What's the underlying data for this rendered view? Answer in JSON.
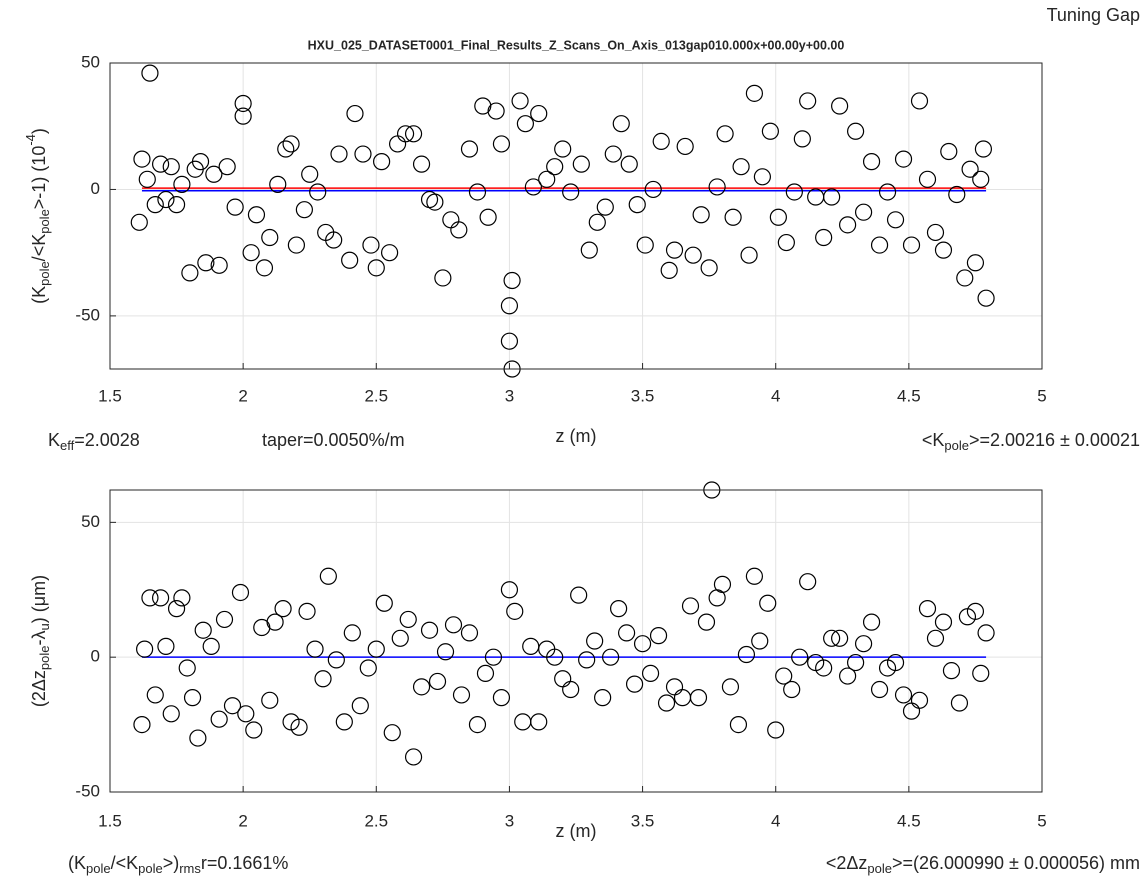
{
  "chart_data": [
    {
      "type": "scatter",
      "suptitle": "Tuning Gap",
      "title": "HXU_025_DATASET0001_Final_Results_Z_Scans_On_Axis_013gap010.000x+00.00y+00.00",
      "xlabel": "z (m)",
      "ylabel": [
        {
          "text": "(K"
        },
        {
          "text": "pole",
          "script": "sub"
        },
        {
          "text": "/<K"
        },
        {
          "text": "pole",
          "script": "sub"
        },
        {
          "text": ">-1) (10"
        },
        {
          "text": "-4",
          "script": "sup"
        },
        {
          "text": ")"
        }
      ],
      "xlim": [
        1.5,
        5
      ],
      "ylim": [
        -71,
        50
      ],
      "xticks": [
        1.5,
        2,
        2.5,
        3,
        3.5,
        4,
        4.5,
        5
      ],
      "yticks": [
        -50,
        0,
        50
      ],
      "grid": true,
      "series": [
        {
          "color": "#000000",
          "marker": "circle",
          "x": [
            1.61,
            1.62,
            1.64,
            1.65,
            1.67,
            1.69,
            1.71,
            1.73,
            1.75,
            1.77,
            1.8,
            1.82,
            1.84,
            1.86,
            1.89,
            1.91,
            1.94,
            1.97,
            2.0,
            2.0,
            2.03,
            2.05,
            2.08,
            2.1,
            2.13,
            2.16,
            2.18,
            2.2,
            2.23,
            2.25,
            2.28,
            2.31,
            2.34,
            2.36,
            2.4,
            2.42,
            2.45,
            2.48,
            2.5,
            2.52,
            2.55,
            2.58,
            2.61,
            2.64,
            2.67,
            2.7,
            2.72,
            2.75,
            2.78,
            2.81,
            2.85,
            2.88,
            2.9,
            2.92,
            2.95,
            2.97,
            3.0,
            3.0,
            3.01,
            3.01,
            3.04,
            3.06,
            3.09,
            3.11,
            3.14,
            3.17,
            3.2,
            3.23,
            3.27,
            3.3,
            3.33,
            3.36,
            3.39,
            3.42,
            3.45,
            3.48,
            3.51,
            3.54,
            3.57,
            3.6,
            3.62,
            3.66,
            3.69,
            3.72,
            3.75,
            3.78,
            3.81,
            3.84,
            3.87,
            3.9,
            3.92,
            3.95,
            3.98,
            4.01,
            4.04,
            4.07,
            4.1,
            4.12,
            4.15,
            4.18,
            4.21,
            4.24,
            4.27,
            4.3,
            4.33,
            4.36,
            4.39,
            4.42,
            4.45,
            4.48,
            4.51,
            4.54,
            4.57,
            4.6,
            4.63,
            4.65,
            4.68,
            4.71,
            4.73,
            4.75,
            4.77,
            4.78,
            4.79
          ],
          "values": [
            -13,
            12,
            4,
            46,
            -6,
            10,
            -4,
            9,
            -6,
            2,
            -33,
            8,
            11,
            -29,
            6,
            -30,
            9,
            -7,
            34,
            29,
            -25,
            -10,
            -31,
            -19,
            2,
            16,
            18,
            -22,
            -8,
            6,
            -1,
            -17,
            -20,
            14,
            -28,
            30,
            14,
            -22,
            -31,
            11,
            -25,
            18,
            22,
            22,
            10,
            -4,
            -5,
            -35,
            -12,
            -16,
            16,
            -1,
            33,
            -11,
            31,
            18,
            -46,
            -60,
            -71,
            -36,
            35,
            26,
            1,
            30,
            4,
            9,
            16,
            -1,
            10,
            -24,
            -13,
            -7,
            14,
            26,
            10,
            -6,
            -22,
            0,
            19,
            -32,
            -24,
            17,
            -26,
            -10,
            -31,
            1,
            22,
            -11,
            9,
            -26,
            38,
            5,
            23,
            -11,
            -21,
            -1,
            20,
            35,
            -3,
            -19,
            -3,
            33,
            -14,
            23,
            -9,
            11,
            -22,
            -1,
            -12,
            12,
            -22,
            35,
            4,
            -17,
            -24,
            15,
            -2,
            -35,
            8,
            -29,
            4,
            16,
            -43
          ]
        }
      ],
      "lines": [
        {
          "color": "#ff0000",
          "x": [
            1.62,
            4.79
          ],
          "values": [
            0.5,
            0.5
          ]
        },
        {
          "color": "#0000ff",
          "x": [
            1.62,
            4.79
          ],
          "values": [
            -0.5,
            -0.5
          ]
        }
      ],
      "annotations": [
        [
          {
            "text": "K"
          },
          {
            "text": "eff",
            "script": "sub"
          },
          {
            "text": "=2.0028"
          }
        ],
        [
          {
            "text": "taper=0.0050%/m"
          }
        ],
        [
          {
            "text": "<K"
          },
          {
            "text": "pole",
            "script": "sub"
          },
          {
            "text": ">=2.00216 ± 0.00021"
          }
        ]
      ]
    },
    {
      "type": "scatter",
      "xlabel": "z (m)",
      "ylabel": [
        {
          "text": "(2Δz"
        },
        {
          "text": "pole",
          "script": "sub"
        },
        {
          "text": "-λ"
        },
        {
          "text": "u",
          "script": "sub"
        },
        {
          "text": ") (μm)"
        }
      ],
      "xlim": [
        1.5,
        5
      ],
      "ylim": [
        -50,
        62
      ],
      "xticks": [
        1.5,
        2,
        2.5,
        3,
        3.5,
        4,
        4.5,
        5
      ],
      "yticks": [
        -50,
        0,
        50
      ],
      "grid": true,
      "series": [
        {
          "color": "#000000",
          "marker": "circle",
          "x": [
            1.62,
            1.63,
            1.65,
            1.67,
            1.69,
            1.71,
            1.73,
            1.75,
            1.77,
            1.79,
            1.81,
            1.83,
            1.85,
            1.88,
            1.91,
            1.93,
            1.96,
            1.99,
            2.01,
            2.04,
            2.07,
            2.1,
            2.12,
            2.15,
            2.18,
            2.21,
            2.24,
            2.27,
            2.3,
            2.32,
            2.35,
            2.38,
            2.41,
            2.44,
            2.47,
            2.5,
            2.53,
            2.56,
            2.59,
            2.62,
            2.64,
            2.67,
            2.7,
            2.73,
            2.76,
            2.79,
            2.82,
            2.85,
            2.88,
            2.91,
            2.94,
            2.97,
            3.0,
            3.02,
            3.05,
            3.08,
            3.11,
            3.14,
            3.17,
            3.2,
            3.23,
            3.26,
            3.29,
            3.32,
            3.35,
            3.38,
            3.41,
            3.44,
            3.47,
            3.5,
            3.53,
            3.56,
            3.59,
            3.62,
            3.65,
            3.68,
            3.71,
            3.74,
            3.76,
            3.78,
            3.8,
            3.83,
            3.86,
            3.89,
            3.92,
            3.94,
            3.97,
            4.0,
            4.03,
            4.06,
            4.09,
            4.12,
            4.15,
            4.18,
            4.21,
            4.24,
            4.27,
            4.3,
            4.33,
            4.36,
            4.39,
            4.42,
            4.45,
            4.48,
            4.51,
            4.54,
            4.57,
            4.6,
            4.63,
            4.66,
            4.69,
            4.72,
            4.75,
            4.77,
            4.79
          ],
          "values": [
            -25,
            3,
            22,
            -14,
            22,
            4,
            -21,
            18,
            22,
            -4,
            -15,
            -30,
            10,
            4,
            -23,
            14,
            -18,
            24,
            -21,
            -27,
            11,
            -16,
            13,
            18,
            -24,
            -26,
            17,
            3,
            -8,
            30,
            -1,
            -24,
            9,
            -18,
            -4,
            3,
            20,
            -28,
            7,
            14,
            -37,
            -11,
            10,
            -9,
            2,
            12,
            -14,
            9,
            -25,
            -6,
            0,
            -15,
            25,
            17,
            -24,
            4,
            -24,
            3,
            0,
            -8,
            -12,
            23,
            -1,
            6,
            -15,
            0,
            18,
            9,
            -10,
            5,
            -6,
            8,
            -17,
            -11,
            -15,
            19,
            -15,
            13,
            62,
            22,
            27,
            -11,
            -25,
            1,
            30,
            6,
            20,
            -27,
            -7,
            -12,
            0,
            28,
            -2,
            -4,
            7,
            7,
            -7,
            -2,
            5,
            13,
            -12,
            -4,
            -2,
            -14,
            -20,
            -16,
            18,
            7,
            13,
            -5,
            -17,
            15,
            17,
            -6,
            9
          ]
        }
      ],
      "lines": [
        {
          "color": "#0000ff",
          "x": [
            1.62,
            4.79
          ],
          "values": [
            0,
            0
          ]
        }
      ],
      "annotations": [
        [
          {
            "text": "(K"
          },
          {
            "text": "pole",
            "script": "sub"
          },
          {
            "text": "/<K"
          },
          {
            "text": "pole",
            "script": "sub"
          },
          {
            "text": ">)"
          },
          {
            "text": "rms",
            "script": "sub"
          },
          {
            "text": "r=0.1661%"
          }
        ],
        [
          {
            "text": "<2Δz"
          },
          {
            "text": "pole",
            "script": "sub"
          },
          {
            "text": ">=(26.000990 ± 0.000056) mm"
          }
        ]
      ]
    }
  ]
}
